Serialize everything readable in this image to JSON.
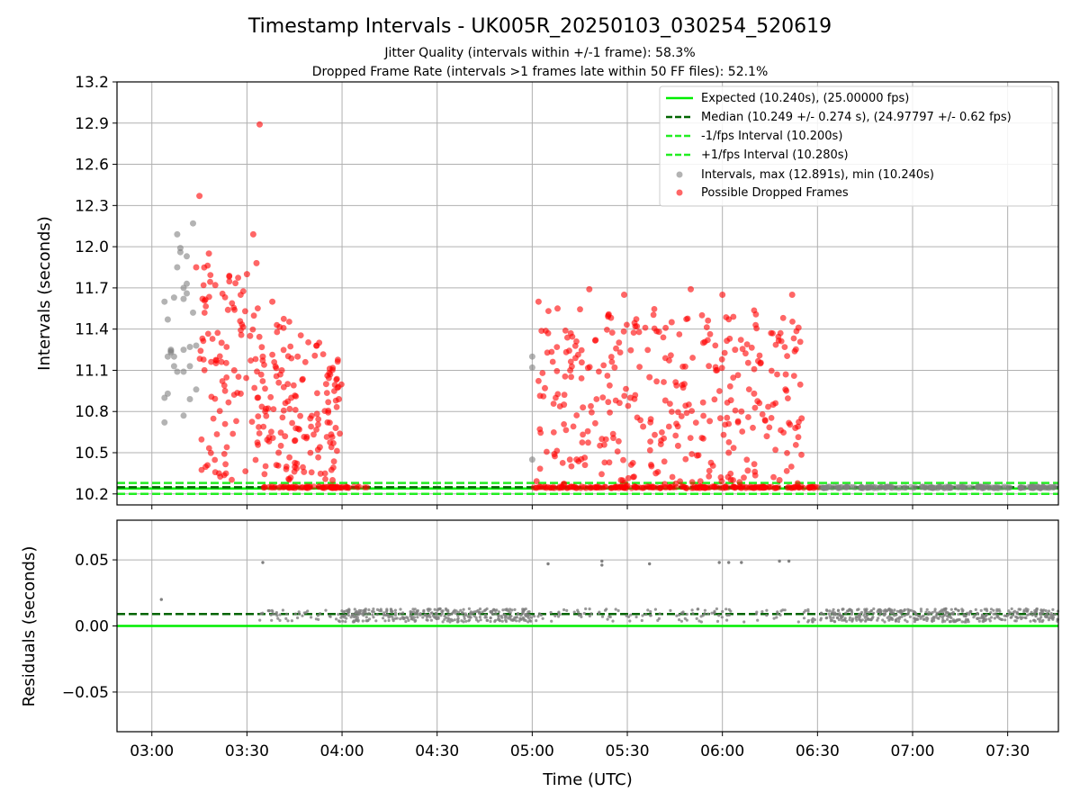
{
  "title": "Timestamp Intervals - UK005R_20250103_030254_520619",
  "subtitle_1": "Jitter Quality (intervals within +/-1 frame): 58.3%",
  "subtitle_2": "Dropped Frame Rate (intervals >1 frames late within 50 FF files): 52.1%",
  "colors": {
    "expected": "#00ee00",
    "median": "#006400",
    "interval_bounds": "#22ee22",
    "intervals": "#808080",
    "dropped": "#ff0000",
    "grid": "#b0b0b0"
  },
  "chart_data": [
    {
      "type": "scatter",
      "ylabel": "Intervals (seconds)",
      "ylim": [
        10.12,
        13.2
      ],
      "yticks": [
        "10.2",
        "10.5",
        "10.8",
        "11.1",
        "11.4",
        "11.7",
        "12.0",
        "12.3",
        "12.6",
        "12.9",
        "13.2"
      ],
      "xlim": [
        "02:49",
        "07:46"
      ],
      "grid": true,
      "legend_position": "top-right",
      "lines": [
        {
          "name": "Expected (10.240s), (25.00000 fps)",
          "y": 10.24,
          "style": "solid"
        },
        {
          "name": "Median (10.249 +/- 0.274 s), (24.97797 +/- 0.62 fps)",
          "y": 10.249,
          "style": "dashed"
        },
        {
          "name": "-1/fps Interval (10.200s)",
          "y": 10.2,
          "style": "dashed"
        },
        {
          "name": "+1/fps Interval (10.280s)",
          "y": 10.28,
          "style": "dashed"
        }
      ],
      "series": [
        {
          "name": "Intervals, max (12.891s), min (10.240s)",
          "points": [
            [
              "03:04",
              10.72
            ],
            [
              "03:04",
              10.9
            ],
            [
              "03:04",
              11.6
            ],
            [
              "03:05",
              11.47
            ],
            [
              "03:05",
              11.2
            ],
            [
              "03:05",
              10.93
            ],
            [
              "03:06",
              11.23
            ],
            [
              "03:06",
              11.24
            ],
            [
              "03:06",
              11.25
            ],
            [
              "03:07",
              11.63
            ],
            [
              "03:07",
              11.2
            ],
            [
              "03:07",
              11.13
            ],
            [
              "03:08",
              12.09
            ],
            [
              "03:08",
              11.85
            ],
            [
              "03:08",
              11.09
            ],
            [
              "03:09",
              11.99
            ],
            [
              "03:09",
              11.96
            ],
            [
              "03:10",
              11.7
            ],
            [
              "03:10",
              11.62
            ],
            [
              "03:10",
              11.25
            ],
            [
              "03:10",
              11.09
            ],
            [
              "03:10",
              10.77
            ],
            [
              "03:11",
              11.93
            ],
            [
              "03:11",
              11.73
            ],
            [
              "03:11",
              11.66
            ],
            [
              "03:12",
              11.27
            ],
            [
              "03:12",
              10.89
            ],
            [
              "03:12",
              11.13
            ],
            [
              "03:13",
              12.17
            ],
            [
              "03:13",
              11.52
            ],
            [
              "03:14",
              11.28
            ],
            [
              "03:14",
              10.96
            ],
            [
              "05:00",
              11.2
            ],
            [
              "05:00",
              11.12
            ],
            [
              "05:00",
              10.45
            ]
          ]
        },
        {
          "name": "Possible Dropped Frames",
          "points": [
            [
              "03:15",
              12.37
            ],
            [
              "03:14",
              11.85
            ],
            [
              "03:16",
              11.62
            ],
            [
              "03:18",
              11.95
            ],
            [
              "03:20",
              11.72
            ],
            [
              "03:22",
              11.3
            ],
            [
              "03:24",
              11.54
            ],
            [
              "03:26",
              11.1
            ],
            [
              "03:28",
              10.93
            ],
            [
              "03:30",
              11.8
            ],
            [
              "03:31",
              11.35
            ],
            [
              "03:32",
              12.09
            ],
            [
              "03:33",
              11.88
            ],
            [
              "03:34",
              12.89
            ],
            [
              "03:35",
              11.2
            ],
            [
              "03:36",
              10.82
            ],
            [
              "03:38",
              11.6
            ],
            [
              "03:40",
              10.5
            ],
            [
              "03:41",
              11.1
            ],
            [
              "03:42",
              10.62
            ],
            [
              "03:44",
              10.9
            ],
            [
              "03:46",
              11.2
            ],
            [
              "03:48",
              10.36
            ],
            [
              "03:50",
              10.75
            ],
            [
              "03:52",
              11.28
            ],
            [
              "03:53",
              10.54
            ],
            [
              "03:55",
              11.0
            ],
            [
              "03:57",
              10.3
            ],
            [
              "03:58",
              10.68
            ],
            [
              "03:59",
              10.89
            ],
            [
              "05:02",
              11.6
            ],
            [
              "05:04",
              10.97
            ],
            [
              "05:05",
              11.37
            ],
            [
              "05:07",
              10.49
            ],
            [
              "05:08",
              11.55
            ],
            [
              "05:10",
              10.85
            ],
            [
              "05:12",
              11.1
            ],
            [
              "05:14",
              10.45
            ],
            [
              "05:16",
              10.83
            ],
            [
              "05:18",
              11.69
            ],
            [
              "05:20",
              11.32
            ],
            [
              "05:22",
              10.6
            ],
            [
              "05:24",
              11.5
            ],
            [
              "05:26",
              11.12
            ],
            [
              "05:28",
              10.3
            ],
            [
              "05:29",
              11.65
            ],
            [
              "05:31",
              10.9
            ],
            [
              "05:33",
              11.42
            ],
            [
              "05:35",
              10.69
            ],
            [
              "05:37",
              11.05
            ],
            [
              "05:39",
              10.35
            ],
            [
              "05:40",
              11.38
            ],
            [
              "05:42",
              10.88
            ],
            [
              "05:44",
              11.45
            ],
            [
              "05:46",
              10.55
            ],
            [
              "05:48",
              11.0
            ],
            [
              "05:50",
              11.69
            ],
            [
              "05:52",
              10.48
            ],
            [
              "05:54",
              11.3
            ],
            [
              "05:56",
              10.73
            ],
            [
              "05:58",
              11.1
            ],
            [
              "06:00",
              11.65
            ],
            [
              "06:02",
              10.5
            ],
            [
              "06:04",
              11.25
            ],
            [
              "06:06",
              10.8
            ],
            [
              "06:08",
              10.37
            ],
            [
              "06:10",
              10.93
            ],
            [
              "06:12",
              11.15
            ],
            [
              "06:14",
              10.62
            ],
            [
              "06:16",
              10.85
            ],
            [
              "06:18",
              10.3
            ],
            [
              "06:20",
              11.07
            ],
            [
              "06:22",
              11.65
            ],
            [
              "06:23",
              10.68
            ],
            [
              "06:24",
              11.41
            ],
            [
              "06:25",
              10.75
            ],
            [
              "03:37",
              10.25
            ],
            [
              "04:00",
              10.25
            ],
            [
              "05:30",
              10.26
            ],
            [
              "06:28",
              10.25
            ]
          ]
        }
      ]
    },
    {
      "type": "scatter",
      "xlabel": "Time (UTC)",
      "ylabel": "Residuals (seconds)",
      "ylim": [
        -0.08,
        0.08
      ],
      "yticks": [
        "−0.05",
        "0.00",
        "0.05"
      ],
      "xlim": [
        "02:49",
        "07:46"
      ],
      "xticks": [
        "03:00",
        "03:30",
        "04:00",
        "04:30",
        "05:00",
        "05:30",
        "06:00",
        "06:30",
        "07:00",
        "07:30"
      ],
      "grid": true,
      "lines": [
        {
          "name": "Expected",
          "y": 0.0,
          "style": "solid"
        },
        {
          "name": "Median",
          "y": 0.009,
          "style": "dashed"
        }
      ],
      "series": [
        {
          "name": "Residuals",
          "baseline": 0.008,
          "outliers": [
            [
              "03:03",
              0.02
            ],
            [
              "03:35",
              0.048
            ],
            [
              "05:05",
              0.047
            ],
            [
              "05:22",
              0.049
            ],
            [
              "05:22",
              0.046
            ],
            [
              "05:37",
              0.047
            ],
            [
              "05:59",
              0.048
            ],
            [
              "06:02",
              0.048
            ],
            [
              "06:06",
              0.048
            ],
            [
              "06:18",
              0.049
            ],
            [
              "06:21",
              0.049
            ]
          ]
        }
      ]
    }
  ]
}
